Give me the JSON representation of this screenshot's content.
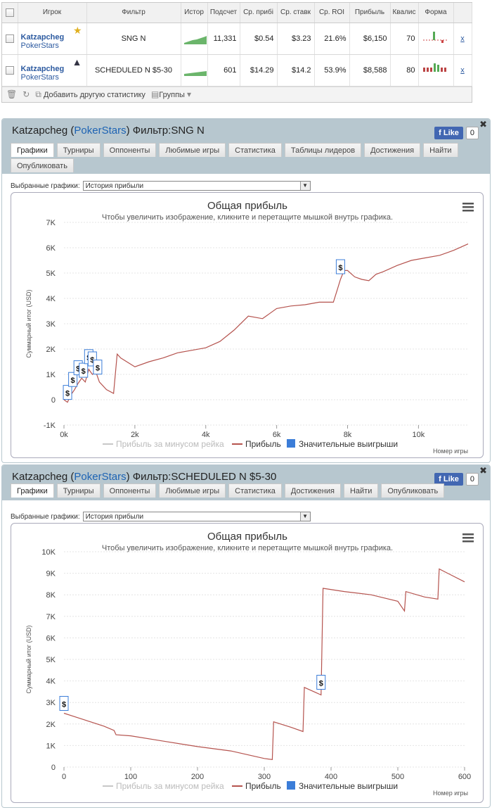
{
  "stats_table": {
    "headers": [
      "",
      "Игрок",
      "Фильтр",
      "Истор",
      "Подсчет",
      "Ср. прибі",
      "Ср. ставк",
      "Ср. ROI",
      "Прибыль",
      "Квалис",
      "Форма",
      ""
    ],
    "rows": [
      {
        "player": "Katzapcheg",
        "site": "PokerStars",
        "player_icon": "star-icon",
        "filter": "SNG N",
        "count": "11,331",
        "avg_profit": "$0.54",
        "avg_stake": "$3.23",
        "avg_roi": "21.6%",
        "profit": "$6,150",
        "qualif": "70",
        "remove": "x"
      },
      {
        "player": "Katzapcheg",
        "site": "PokerStars",
        "player_icon": "wizard-hat-icon",
        "filter": "SCHEDULED N $5-30",
        "count": "601",
        "avg_profit": "$14.29",
        "avg_stake": "$14.2",
        "avg_roi": "53.9%",
        "profit": "$8,588",
        "qualif": "80",
        "remove": "x"
      }
    ],
    "footer": {
      "add_stats": "Добавить другую статистику",
      "groups": "Группы"
    }
  },
  "panels": [
    {
      "title_prefix": "Katzapcheg (",
      "site": "PokerStars",
      "title_suffix": ") Фильтр:SNG N",
      "fb_like": "Like",
      "fb_count": "0",
      "close": "✖",
      "tabs": [
        "Графики",
        "Турниры",
        "Оппоненты",
        "Любимые игры",
        "Статистика",
        "Таблицы лидеров",
        "Достижения",
        "Найти",
        "Опубликовать"
      ],
      "active_tab": 0,
      "chooser_label": "Выбранные графики:",
      "chooser_value": "История прибыли"
    },
    {
      "title_prefix": "Katzapcheg (",
      "site": "PokerStars",
      "title_suffix": ") Фильтр:SCHEDULED N $5-30",
      "fb_like": "Like",
      "fb_count": "0",
      "close": "✖",
      "tabs": [
        "Графики",
        "Турниры",
        "Оппоненты",
        "Любимые игры",
        "Статистика",
        "Достижения",
        "Найти",
        "Опубликовать"
      ],
      "active_tab": 0,
      "chooser_label": "Выбранные графики:",
      "chooser_value": "История прибыли"
    }
  ],
  "chart_data": [
    {
      "type": "line",
      "title": "Общая прибыль",
      "subtitle": "Чтобы увеличить изображение, кликните и перетащите мышкой внутрь графика.",
      "ylabel": "Суммарный итог (USD)",
      "xlabel": "Номер игры",
      "ylim": [
        -1000,
        7000
      ],
      "xlim": [
        0,
        11400
      ],
      "y_ticks": [
        "-1K",
        "0",
        "1K",
        "2K",
        "3K",
        "4K",
        "5K",
        "6K",
        "7K"
      ],
      "x_ticks": [
        "0k",
        "2k",
        "4k",
        "6k",
        "8k",
        "10k"
      ],
      "legend": [
        "Прибыль за минусом рейка",
        "Прибыль",
        "Значительные выигрыши"
      ],
      "series": [
        {
          "name": "Прибыль",
          "color": "#b5534e",
          "x": [
            0,
            100,
            200,
            300,
            400,
            500,
            600,
            700,
            800,
            900,
            1000,
            1200,
            1400,
            1500,
            1600,
            2000,
            2400,
            2800,
            3200,
            3600,
            4000,
            4400,
            4800,
            5200,
            5600,
            6000,
            6400,
            6800,
            7200,
            7600,
            7700,
            7800,
            7900,
            8000,
            8200,
            8400,
            8600,
            8800,
            9000,
            9400,
            9800,
            10200,
            10600,
            11000,
            11400
          ],
          "y": [
            0,
            -100,
            200,
            400,
            650,
            850,
            700,
            1200,
            1000,
            1100,
            700,
            400,
            250,
            1800,
            1650,
            1300,
            1500,
            1650,
            1850,
            1950,
            2050,
            2300,
            2750,
            3300,
            3200,
            3600,
            3700,
            3750,
            3850,
            3850,
            4300,
            4750,
            5100,
            5100,
            4850,
            4750,
            4700,
            4950,
            5050,
            5300,
            5500,
            5600,
            5700,
            5900,
            6150
          ]
        }
      ],
      "markers_x": [
        100,
        250,
        400,
        550,
        700,
        800,
        950,
        7800
      ]
    },
    {
      "type": "line",
      "title": "Общая прибыль",
      "subtitle": "Чтобы увеличить изображение, кликните и перетащите мышкой внутрь графика.",
      "ylabel": "Суммарный итог (USD)",
      "xlabel": "Номер игры",
      "ylim": [
        0,
        10000
      ],
      "xlim": [
        0,
        600
      ],
      "y_ticks": [
        "0",
        "1K",
        "2K",
        "3K",
        "4K",
        "5K",
        "6K",
        "7K",
        "8K",
        "9K",
        "10K"
      ],
      "x_ticks": [
        "0",
        "100",
        "200",
        "300",
        "400",
        "500",
        "600"
      ],
      "legend": [
        "Прибыль за минусом рейка",
        "Прибыль",
        "Значительные выигрыши"
      ],
      "series": [
        {
          "name": "Прибыль",
          "color": "#b5534e",
          "x": [
            0,
            30,
            60,
            75,
            78,
            100,
            150,
            200,
            250,
            300,
            312,
            314,
            340,
            358,
            360,
            378,
            385,
            388,
            420,
            460,
            500,
            510,
            512,
            540,
            560,
            562,
            600
          ],
          "y": [
            2500,
            2200,
            1900,
            1700,
            1500,
            1450,
            1200,
            950,
            750,
            400,
            350,
            2100,
            1850,
            1650,
            3700,
            3450,
            3350,
            8300,
            8150,
            8000,
            7700,
            7250,
            8150,
            7900,
            7800,
            9200,
            8600
          ]
        }
      ],
      "markers_x": [
        0,
        385
      ]
    }
  ],
  "colors": {
    "profit_line": "#b5534e",
    "rake_line": "#c8c8c8",
    "big_win": "#3b7dd8",
    "panel_head": "#b7c7cf",
    "link": "#2c5aa0"
  }
}
